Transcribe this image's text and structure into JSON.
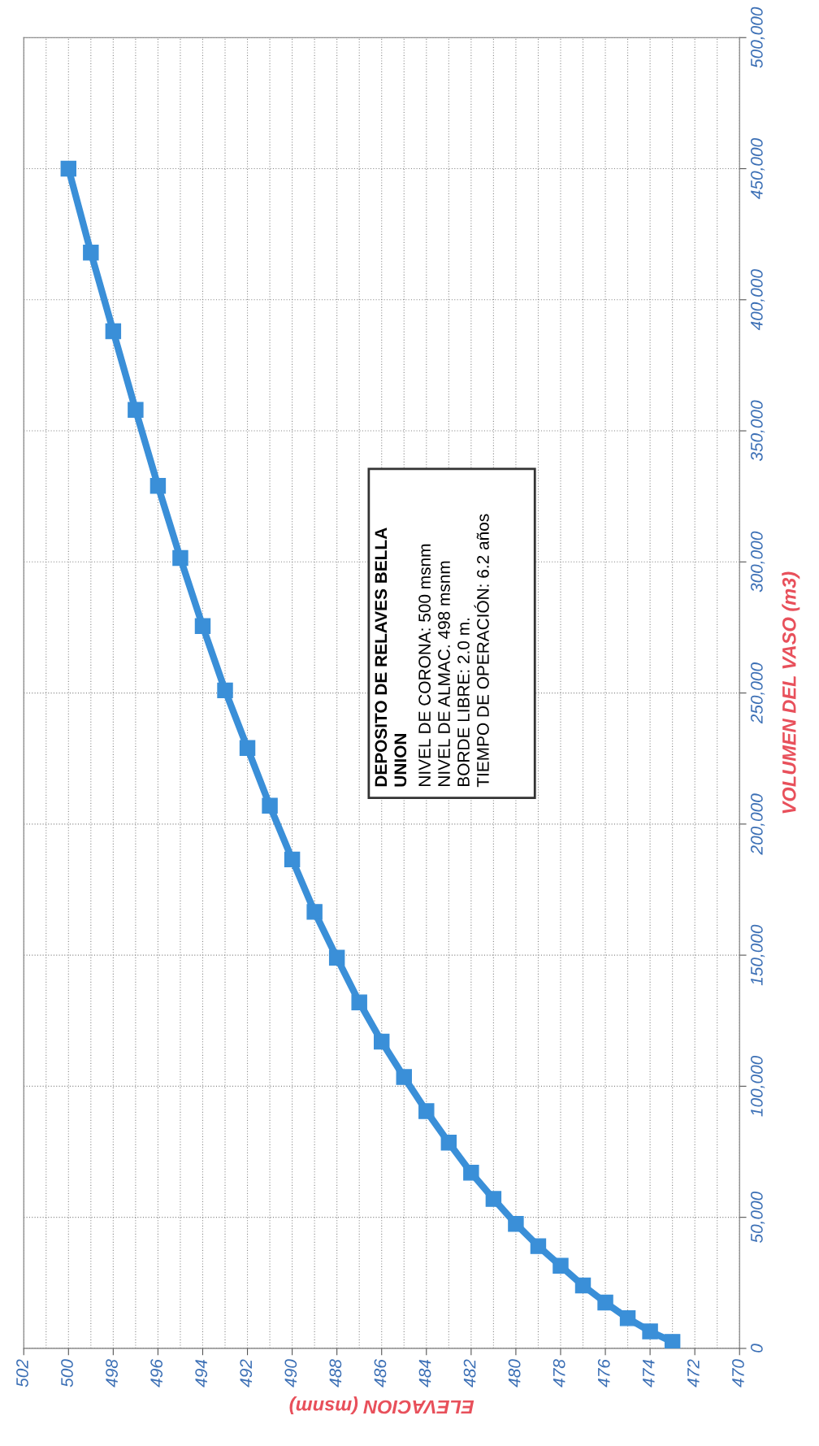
{
  "chart_data": {
    "type": "line",
    "xlabel": "ELEVACION (msnm)",
    "ylabel": "VOLUMEN DEL VASO (m3)",
    "x": [
      473,
      474,
      475,
      476,
      477,
      478,
      479,
      480,
      481,
      482,
      483,
      484,
      485,
      486,
      487,
      488,
      489,
      490,
      491,
      492,
      493,
      494,
      495,
      496,
      497,
      498,
      499,
      500
    ],
    "series": [
      {
        "color": "#3a8fd8",
        "values": [
          2500,
          6500,
          11500,
          17500,
          24000,
          31500,
          39000,
          47500,
          57000,
          67000,
          78500,
          90500,
          103500,
          117000,
          132000,
          149000,
          166500,
          186500,
          207000,
          229000,
          251000,
          275500,
          301500,
          329000,
          358000,
          388000,
          418000,
          450000
        ]
      }
    ],
    "xlim": [
      502,
      470
    ],
    "xticks": [
      502,
      {
        "value": 501,
        "label": null
      },
      500,
      {
        "value": 499,
        "label": null
      },
      498,
      {
        "value": 497,
        "label": null
      },
      496,
      {
        "value": 495,
        "label": null
      },
      494,
      {
        "value": 493,
        "label": null
      },
      492,
      {
        "value": 491,
        "label": null
      },
      490,
      {
        "value": 489,
        "label": null
      },
      488,
      {
        "value": 487,
        "label": null
      },
      486,
      {
        "value": 485,
        "label": null
      },
      484,
      {
        "value": 483,
        "label": null
      },
      482,
      {
        "value": 481,
        "label": null
      },
      480,
      {
        "value": 479,
        "label": null
      },
      478,
      {
        "value": 477,
        "label": null
      },
      476,
      {
        "value": 475,
        "label": null
      },
      474,
      {
        "value": 473,
        "label": null
      },
      472,
      {
        "value": 471,
        "label": null
      },
      470
    ],
    "ylim": [
      0,
      500000
    ],
    "yticks": [
      0,
      {
        "value": 50000,
        "label": "50,000"
      },
      {
        "value": 100000,
        "label": "100,000"
      },
      {
        "value": 150000,
        "label": "150,000"
      },
      {
        "value": 200000,
        "label": "200,000"
      },
      {
        "value": 250000,
        "label": "250,000"
      },
      {
        "value": 300000,
        "label": "300,000"
      },
      {
        "value": 350000,
        "label": "350,000"
      },
      {
        "value": 400000,
        "label": "400,000"
      },
      {
        "value": 450000,
        "label": "450,000"
      },
      {
        "value": 500000,
        "label": "500,000"
      }
    ],
    "grid": true,
    "marker": "square",
    "line_style": "solid",
    "annotations": [
      "DEPOSITO DE RELAVES BELLA\nUNION",
      "NIVEL DE CORONA: 500 msnm\nNIVEL DE ALMAC. 498 msnm\nBORDE LIBRE: 2.0 m.\nTIEMPO DE OPERACIÓN: 6.2 años"
    ]
  }
}
